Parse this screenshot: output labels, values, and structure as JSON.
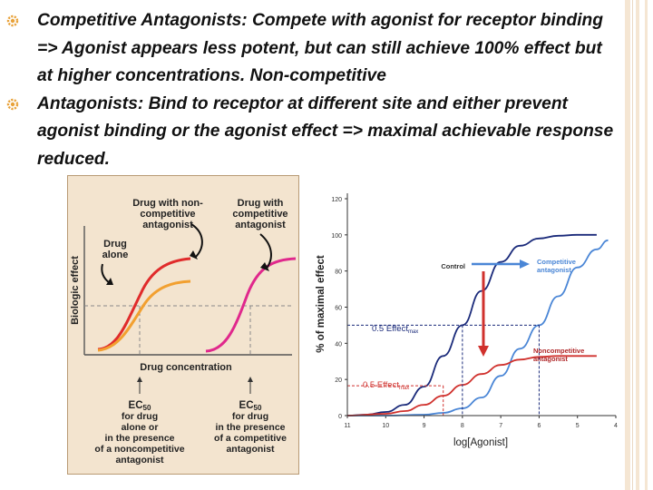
{
  "bullets": [
    "Competitive Antagonists: Compete with agonist for receptor binding => Agonist appears less potent, but can still achieve 100% effect but at higher concentrations. Non-competitive",
    "Antagonists: Bind to receptor at different site and either prevent agonist binding or the agonist effect => maximal achievable response reduced."
  ],
  "left_diagram": {
    "ylabel": "Biologic effect",
    "xlabel": "Drug concentration",
    "label_noncomp": [
      "Drug with non-",
      "competitive",
      "antagonist"
    ],
    "label_comp": [
      "Drug with",
      "competitive",
      "antagonist"
    ],
    "label_alone": [
      "Drug",
      "alone"
    ],
    "ec50_left": {
      "title": "EC",
      "sub": "50",
      "lines": [
        "for drug",
        "alone or",
        "in the presence",
        "of a noncompetitive",
        "antagonist"
      ]
    },
    "ec50_right": {
      "title": "EC",
      "sub": "50",
      "lines": [
        "for drug",
        "in the presence",
        "of a competitive",
        "antagonist"
      ]
    },
    "colors": {
      "alone": "#e02b2b",
      "noncomp": "#f2a030",
      "comp": "#e0288c",
      "panel": "#f3e4cf"
    }
  },
  "chart_data": {
    "type": "line",
    "title": "",
    "xlabel": "log[Agonist]",
    "ylabel": "% of maximal effect",
    "xlim": [
      11,
      4
    ],
    "ylim": [
      0,
      120
    ],
    "x_ticks": [
      11,
      10,
      9,
      8,
      7,
      6,
      5,
      4
    ],
    "y_ticks": [
      0,
      20,
      40,
      60,
      80,
      100,
      120
    ],
    "series": [
      {
        "name": "Control",
        "color": "#1a2a7a",
        "x": [
          11,
          10.5,
          10,
          9.5,
          9,
          8.5,
          8,
          7.5,
          7,
          6.5,
          6,
          5.5,
          5,
          4.5
        ],
        "values": [
          0,
          0.5,
          2,
          6,
          16,
          33,
          50,
          69,
          85,
          94,
          98,
          99.5,
          100,
          100
        ]
      },
      {
        "name": "Competitive antagonist",
        "color": "#4a86d6",
        "x": [
          11,
          10,
          9,
          8.5,
          8,
          7.5,
          7,
          6.5,
          6,
          5.5,
          5,
          4.5,
          4.2
        ],
        "values": [
          0,
          0,
          0.5,
          1.5,
          4,
          10,
          22,
          37,
          50,
          66,
          82,
          92,
          97
        ]
      },
      {
        "name": "Noncompetitive antagonist",
        "color": "#d0312d",
        "x": [
          11,
          10,
          9.5,
          9,
          8.5,
          8,
          7.5,
          7,
          6.5,
          6,
          5.5,
          5,
          4.5
        ],
        "values": [
          0,
          1,
          2.5,
          6,
          11,
          17,
          23,
          28,
          31,
          32.5,
          33,
          33,
          33
        ]
      }
    ],
    "annotations": {
      "half_effect_control": "0.5 Effect",
      "half_effect_control_sub": "max",
      "half_effect_control_y": 50,
      "half_effect_noncomp": "0.5 Effect",
      "half_effect_noncomp_sub": "max",
      "half_effect_noncomp_y": 16.5,
      "control": "Control",
      "competitive": [
        "Competitive",
        "antagonist"
      ],
      "noncompetitive": [
        "Noncompetitive",
        "antagonist"
      ]
    },
    "icon": "bullet-gear-icon"
  }
}
